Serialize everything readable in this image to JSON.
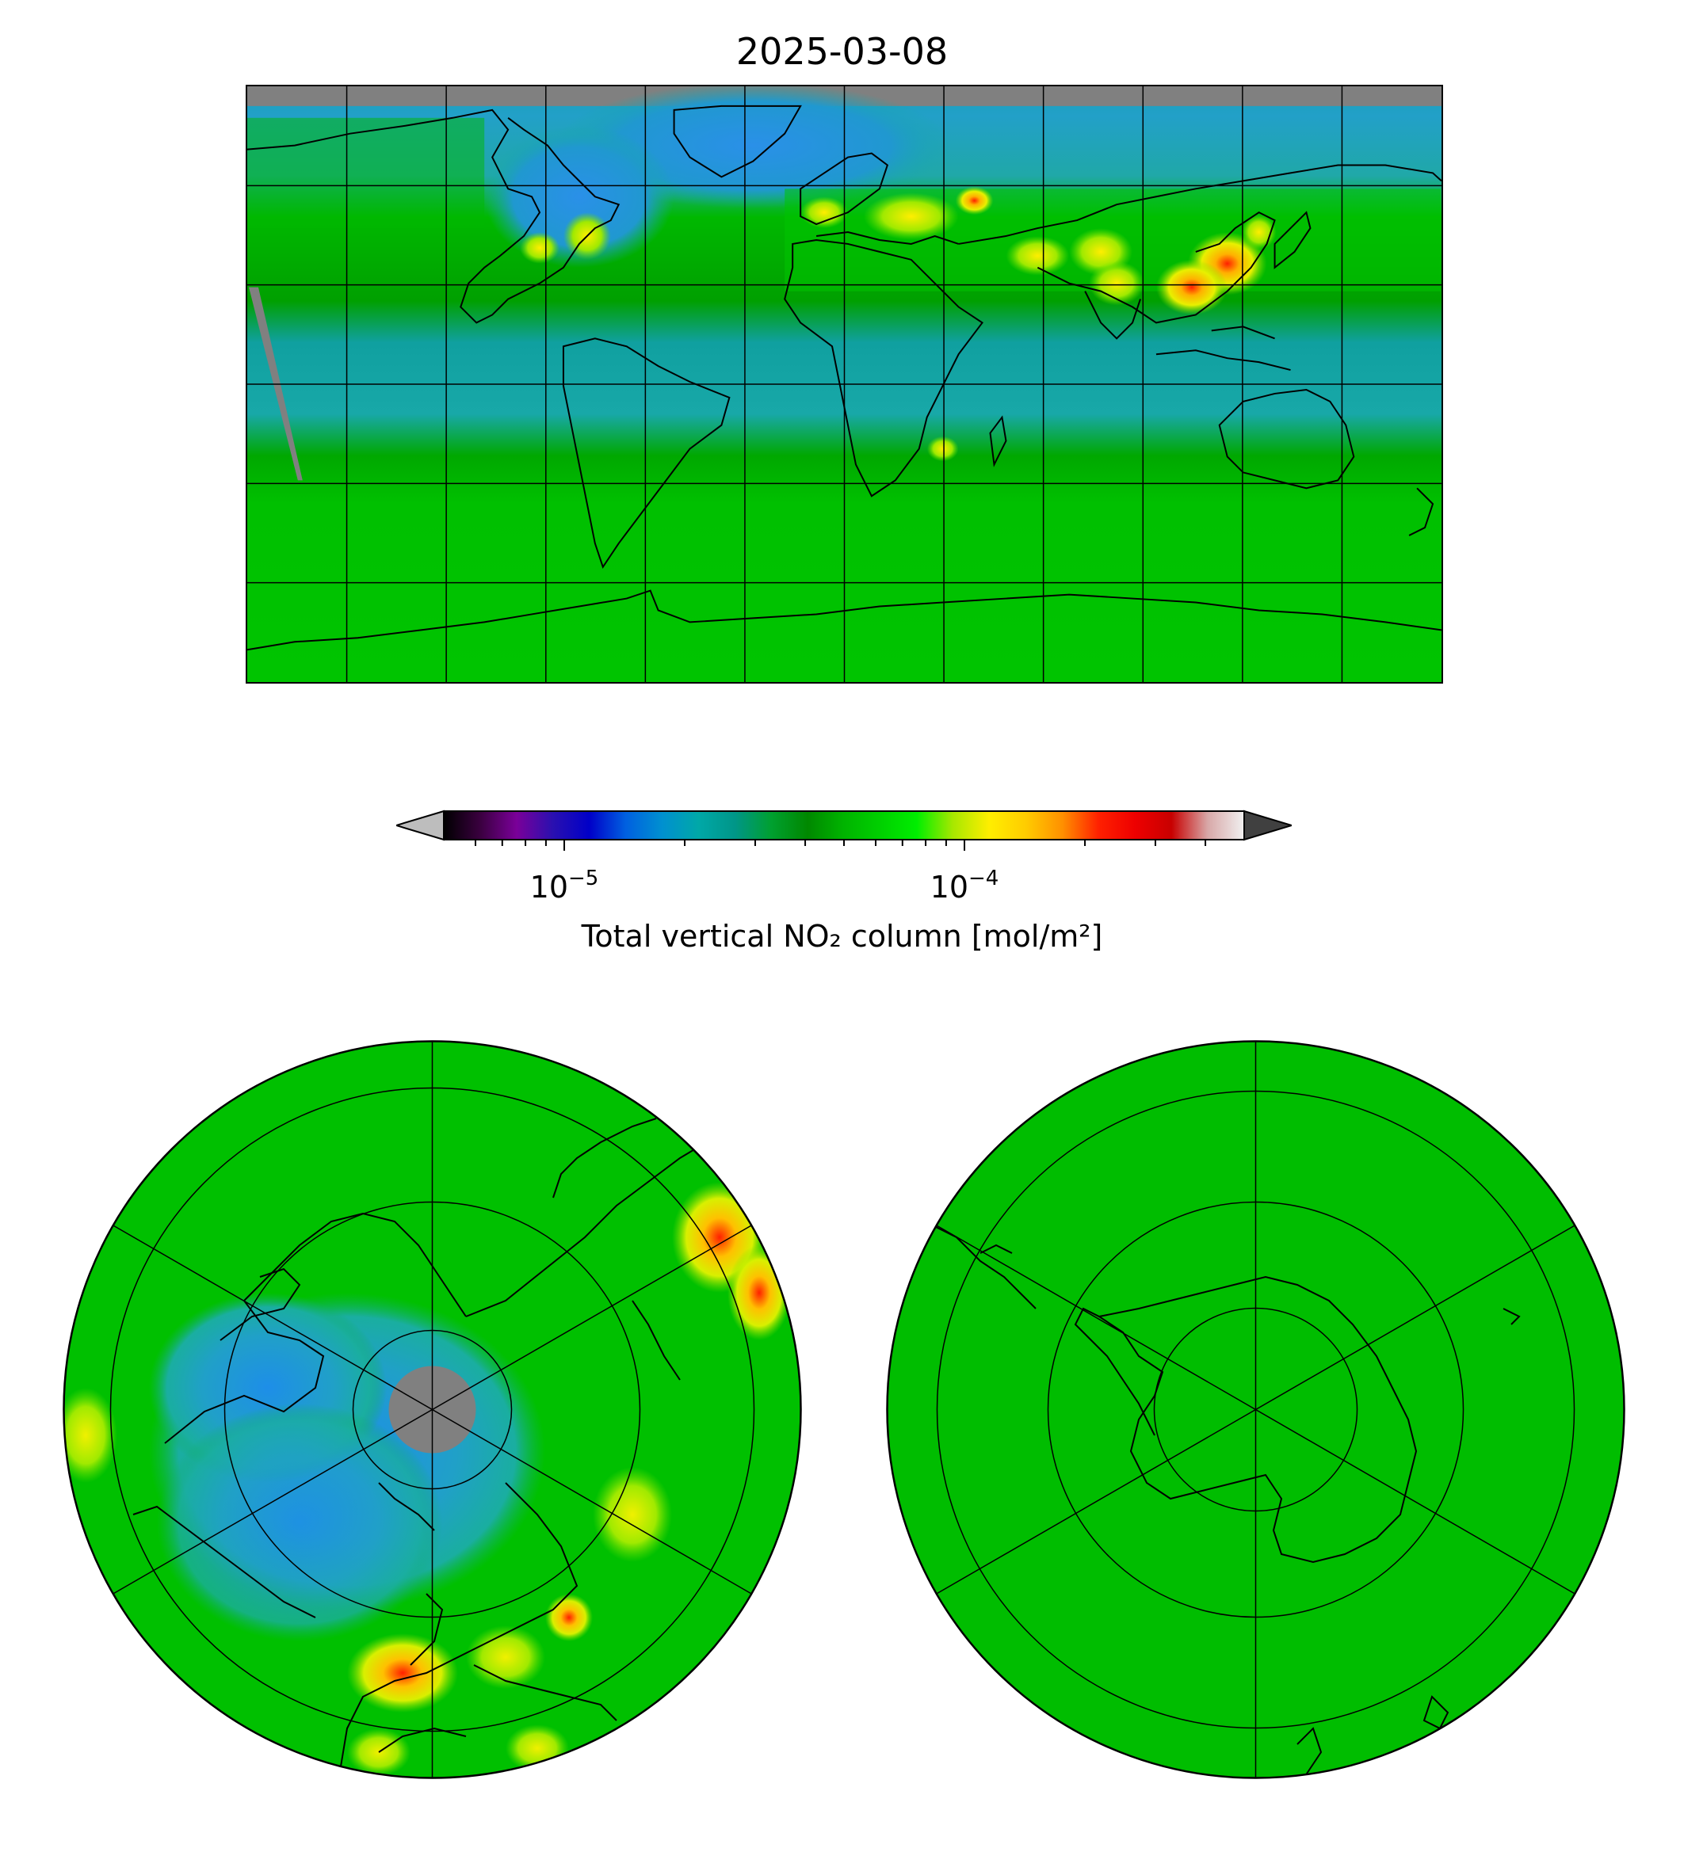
{
  "title": "2025-03-08",
  "colorbar": {
    "label": "Total vertical NO₂ column [mol/m²]",
    "scale": "log",
    "range": [
      5e-06,
      0.0005
    ],
    "extend": "both",
    "major_ticks": [
      {
        "value": 1e-05,
        "mantissa": "10",
        "exponent": "−5"
      },
      {
        "value": 0.0001,
        "mantissa": "10",
        "exponent": "−4"
      }
    ],
    "minor_ticks": [
      6e-06,
      7e-06,
      8e-06,
      9e-06,
      2e-05,
      3e-05,
      4e-05,
      5e-05,
      6e-05,
      7e-05,
      8e-05,
      9e-05,
      0.0002,
      0.0003,
      0.0004
    ],
    "colors": [
      "#000000",
      "#3a003f",
      "#7a0099",
      "#2a10b0",
      "#0000c8",
      "#0060e0",
      "#0090d0",
      "#00a8a8",
      "#009688",
      "#00a030",
      "#008800",
      "#00b400",
      "#00d000",
      "#00ee00",
      "#a8e800",
      "#ffee00",
      "#ffcc00",
      "#ff9000",
      "#ff2000",
      "#ee0000",
      "#c80000",
      "#d8a8a8",
      "#f0f0f0"
    ],
    "under_color": "#bdbdbd",
    "over_color": "#404040"
  },
  "colors": {
    "background_green": "#00c800",
    "tropics_teal": "#14a8a0",
    "arctic_blue": "#1e90dc",
    "no_data": "#808080",
    "coastline": "#000000"
  },
  "panels": {
    "global": {
      "projection": "plate-carree"
    },
    "north": {
      "projection": "north-polar-stereographic"
    },
    "south": {
      "projection": "south-polar-stereographic"
    }
  }
}
